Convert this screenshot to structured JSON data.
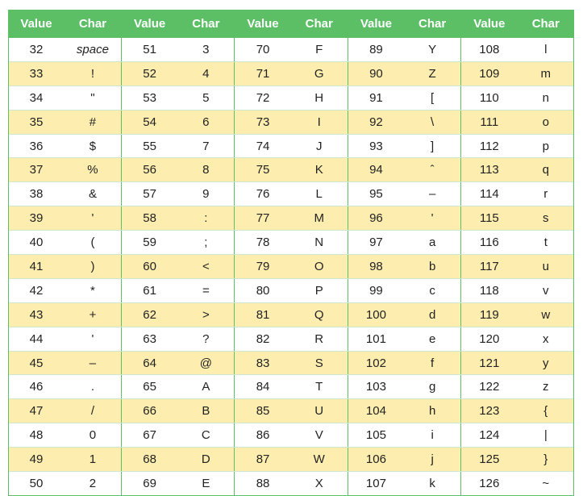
{
  "table": {
    "headers": [
      "Value",
      "Char",
      "Value",
      "Char",
      "Value",
      "Char",
      "Value",
      "Char",
      "Value",
      "Char"
    ],
    "rows": [
      [
        [
          "32",
          "space"
        ],
        [
          "51",
          "3"
        ],
        [
          "70",
          "F"
        ],
        [
          "89",
          "Y"
        ],
        [
          "108",
          "l"
        ]
      ],
      [
        [
          "33",
          "!"
        ],
        [
          "52",
          "4"
        ],
        [
          "71",
          "G"
        ],
        [
          "90",
          "Z"
        ],
        [
          "109",
          "m"
        ]
      ],
      [
        [
          "34",
          "\""
        ],
        [
          "53",
          "5"
        ],
        [
          "72",
          "H"
        ],
        [
          "91",
          "["
        ],
        [
          "110",
          "n"
        ]
      ],
      [
        [
          "35",
          "#"
        ],
        [
          "54",
          "6"
        ],
        [
          "73",
          "I"
        ],
        [
          "92",
          "\\"
        ],
        [
          "111",
          "o"
        ]
      ],
      [
        [
          "36",
          "$"
        ],
        [
          "55",
          "7"
        ],
        [
          "74",
          "J"
        ],
        [
          "93",
          "]"
        ],
        [
          "112",
          "p"
        ]
      ],
      [
        [
          "37",
          "%"
        ],
        [
          "56",
          "8"
        ],
        [
          "75",
          "K"
        ],
        [
          "94",
          "ˆ"
        ],
        [
          "113",
          "q"
        ]
      ],
      [
        [
          "38",
          "&"
        ],
        [
          "57",
          "9"
        ],
        [
          "76",
          "L"
        ],
        [
          "95",
          "–"
        ],
        [
          "114",
          "r"
        ]
      ],
      [
        [
          "39",
          "'"
        ],
        [
          "58",
          ":"
        ],
        [
          "77",
          "M"
        ],
        [
          "96",
          "'"
        ],
        [
          "115",
          "s"
        ]
      ],
      [
        [
          "40",
          "("
        ],
        [
          "59",
          ";"
        ],
        [
          "78",
          "N"
        ],
        [
          "97",
          "a"
        ],
        [
          "116",
          "t"
        ]
      ],
      [
        [
          "41",
          ")"
        ],
        [
          "60",
          "<"
        ],
        [
          "79",
          "O"
        ],
        [
          "98",
          "b"
        ],
        [
          "117",
          "u"
        ]
      ],
      [
        [
          "42",
          "*"
        ],
        [
          "61",
          "="
        ],
        [
          "80",
          "P"
        ],
        [
          "99",
          "c"
        ],
        [
          "118",
          "v"
        ]
      ],
      [
        [
          "43",
          "+"
        ],
        [
          "62",
          ">"
        ],
        [
          "81",
          "Q"
        ],
        [
          "100",
          "d"
        ],
        [
          "119",
          "w"
        ]
      ],
      [
        [
          "44",
          "'"
        ],
        [
          "63",
          "?"
        ],
        [
          "82",
          "R"
        ],
        [
          "101",
          "e"
        ],
        [
          "120",
          "x"
        ]
      ],
      [
        [
          "45",
          "–"
        ],
        [
          "64",
          "@"
        ],
        [
          "83",
          "S"
        ],
        [
          "102",
          "f"
        ],
        [
          "121",
          "y"
        ]
      ],
      [
        [
          "46",
          "."
        ],
        [
          "65",
          "A"
        ],
        [
          "84",
          "T"
        ],
        [
          "103",
          "g"
        ],
        [
          "122",
          "z"
        ]
      ],
      [
        [
          "47",
          "/"
        ],
        [
          "66",
          "B"
        ],
        [
          "85",
          "U"
        ],
        [
          "104",
          "h"
        ],
        [
          "123",
          "{"
        ]
      ],
      [
        [
          "48",
          "0"
        ],
        [
          "67",
          "C"
        ],
        [
          "86",
          "V"
        ],
        [
          "105",
          "i"
        ],
        [
          "124",
          "|"
        ]
      ],
      [
        [
          "49",
          "1"
        ],
        [
          "68",
          "D"
        ],
        [
          "87",
          "W"
        ],
        [
          "106",
          "j"
        ],
        [
          "125",
          "}"
        ]
      ],
      [
        [
          "50",
          "2"
        ],
        [
          "69",
          "E"
        ],
        [
          "88",
          "X"
        ],
        [
          "107",
          "k"
        ],
        [
          "126",
          "~"
        ]
      ]
    ]
  },
  "colors": {
    "header_green": "#5cbf66",
    "stripe_yellow": "#fdeeb0",
    "row_white": "#ffffff"
  }
}
